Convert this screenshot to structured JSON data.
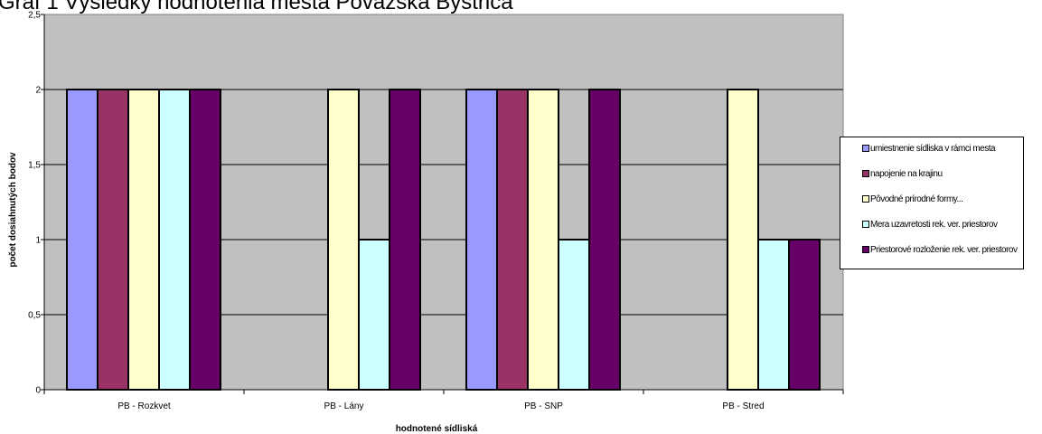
{
  "chart_data": {
    "type": "bar",
    "title": "Graf 1 Výsledky hodnotenia mesta Považská Bystrica",
    "xlabel": "hodnotené sídliská",
    "ylabel": "počet dosiahnutých bodov",
    "ylim": [
      0,
      2.5
    ],
    "yticks": [
      "0",
      "0,5",
      "1",
      "1,5",
      "2",
      "2,5"
    ],
    "categories": [
      "PB - Rozkvet",
      "PB - Lány",
      "PB - SNP",
      "PB - Stred"
    ],
    "series": [
      {
        "name": "umiestnenie sídliska v rámci mesta",
        "color": "#9999ff",
        "values": [
          2,
          0,
          2,
          0
        ]
      },
      {
        "name": "napojenie na krajinu",
        "color": "#993366",
        "values": [
          2,
          0,
          2,
          0
        ]
      },
      {
        "name": "Pôvodné prírodné formy...",
        "color": "#ffffcc",
        "values": [
          2,
          2,
          2,
          2
        ]
      },
      {
        "name": "Mera uzavretosti rek. ver. priestorov",
        "color": "#ccffff",
        "values": [
          2,
          1,
          1,
          1
        ]
      },
      {
        "name": "Priestorové rozloženie rek. ver. priestorov",
        "color": "#660066",
        "values": [
          2,
          2,
          2,
          1
        ]
      }
    ],
    "plot_background": "#c0c0c0",
    "grid": true,
    "legend_position": "right"
  }
}
